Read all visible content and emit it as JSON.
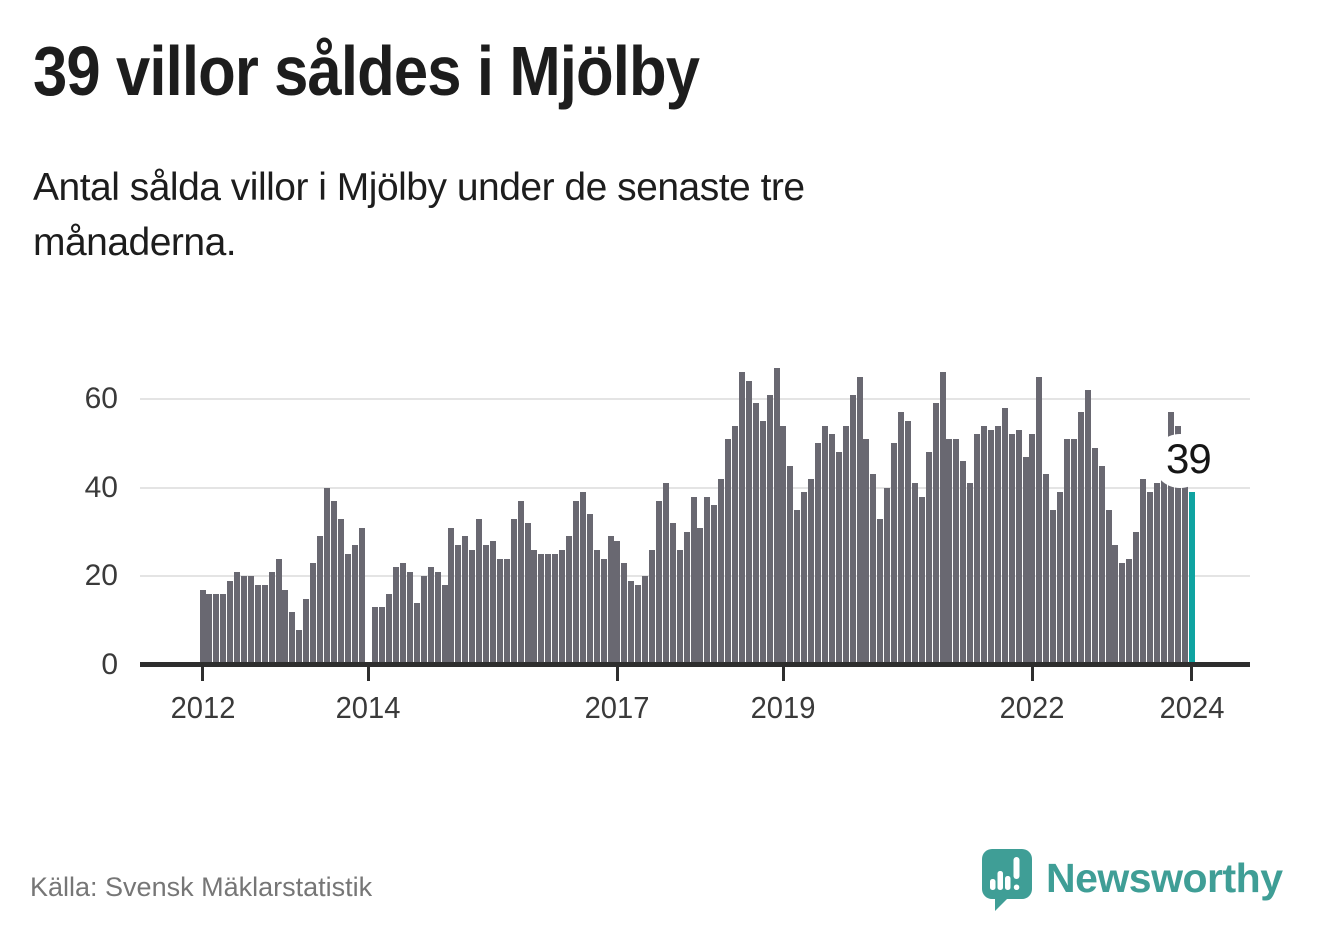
{
  "header": {
    "title": "39 villor såldes i Mjölby",
    "subtitle": "Antal sålda villor i Mjölby under de senaste tre månaderna."
  },
  "chart_data": {
    "type": "bar",
    "title": "39 villor såldes i Mjölby",
    "subtitle": "Antal sålda villor i Mjölby under de senaste tre månaderna.",
    "ylabel": "",
    "xlabel": "",
    "x_range": [
      "2012",
      "2024"
    ],
    "x_interval": "monthly (rolling 3-month sales count)",
    "ylim": [
      0,
      70
    ],
    "y_ticks": [
      0,
      20,
      40,
      60
    ],
    "grid": "horizontal",
    "values": [
      17,
      16,
      16,
      16,
      19,
      21,
      20,
      20,
      18,
      18,
      21,
      24,
      17,
      12,
      8,
      15,
      23,
      29,
      40,
      37,
      33,
      25,
      27,
      31,
      0,
      13,
      13,
      16,
      22,
      23,
      21,
      14,
      20,
      22,
      21,
      18,
      31,
      27,
      29,
      26,
      33,
      27,
      28,
      24,
      24,
      33,
      37,
      32,
      26,
      25,
      25,
      25,
      26,
      29,
      37,
      39,
      34,
      26,
      24,
      29,
      28,
      23,
      19,
      18,
      20,
      26,
      37,
      41,
      32,
      26,
      30,
      38,
      31,
      38,
      36,
      42,
      51,
      54,
      66,
      64,
      59,
      55,
      61,
      67,
      54,
      45,
      35,
      39,
      42,
      50,
      54,
      52,
      48,
      54,
      61,
      65,
      51,
      43,
      33,
      40,
      50,
      57,
      55,
      41,
      38,
      48,
      59,
      66,
      51,
      51,
      46,
      41,
      52,
      54,
      53,
      54,
      58,
      52,
      53,
      47,
      52,
      65,
      43,
      35,
      39,
      51,
      51,
      57,
      62,
      49,
      45,
      35,
      27,
      23,
      24,
      30,
      42,
      39,
      41,
      44,
      57,
      54,
      41,
      39
    ],
    "x_ticks": [
      {
        "label": "2012",
        "index": 0
      },
      {
        "label": "2014",
        "index": 24
      },
      {
        "label": "2017",
        "index": 60
      },
      {
        "label": "2019",
        "index": 84
      },
      {
        "label": "2022",
        "index": 120
      },
      {
        "label": "2024",
        "index": 143
      }
    ],
    "highlight_index": 143,
    "highlight_value": 39,
    "annotation": "39",
    "colors": {
      "bar": "#696871",
      "highlight": "#0fa3a1",
      "axis": "#2e2e2e",
      "grid": "#e4e4e4",
      "tick_label": "#3a3a3a"
    }
  },
  "footer": {
    "source": "Källa: Svensk Mäklarstatistik",
    "brand": "Newsworthy",
    "brand_color": "#3f9e96"
  }
}
